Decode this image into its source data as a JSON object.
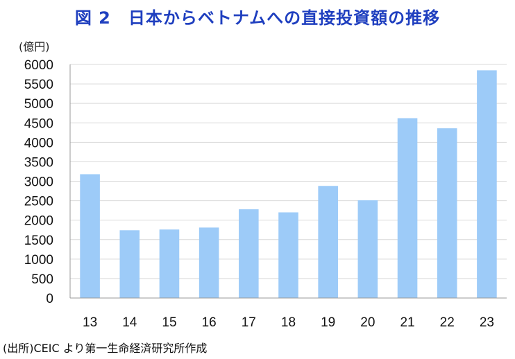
{
  "title": "図 2　日本からベトナムへの直接投資額の推移",
  "unit_label": "(億円)",
  "source": "(出所)CEIC より第一生命経済研究所作成",
  "chart_data": {
    "type": "bar",
    "categories": [
      "13",
      "14",
      "15",
      "16",
      "17",
      "18",
      "19",
      "20",
      "21",
      "22",
      "23"
    ],
    "values": [
      3180,
      1740,
      1760,
      1810,
      2280,
      2200,
      2880,
      2510,
      4620,
      4360,
      5850
    ],
    "ylim": [
      0,
      6000
    ],
    "yticks": [
      0,
      500,
      1000,
      1500,
      2000,
      2500,
      3000,
      3500,
      4000,
      4500,
      5000,
      5500,
      6000
    ],
    "grid": true,
    "bar_color": "#9dcbf8",
    "title": "図 2　日本からベトナムへの直接投資額の推移",
    "ylabel": "(億円)",
    "xlabel": ""
  }
}
